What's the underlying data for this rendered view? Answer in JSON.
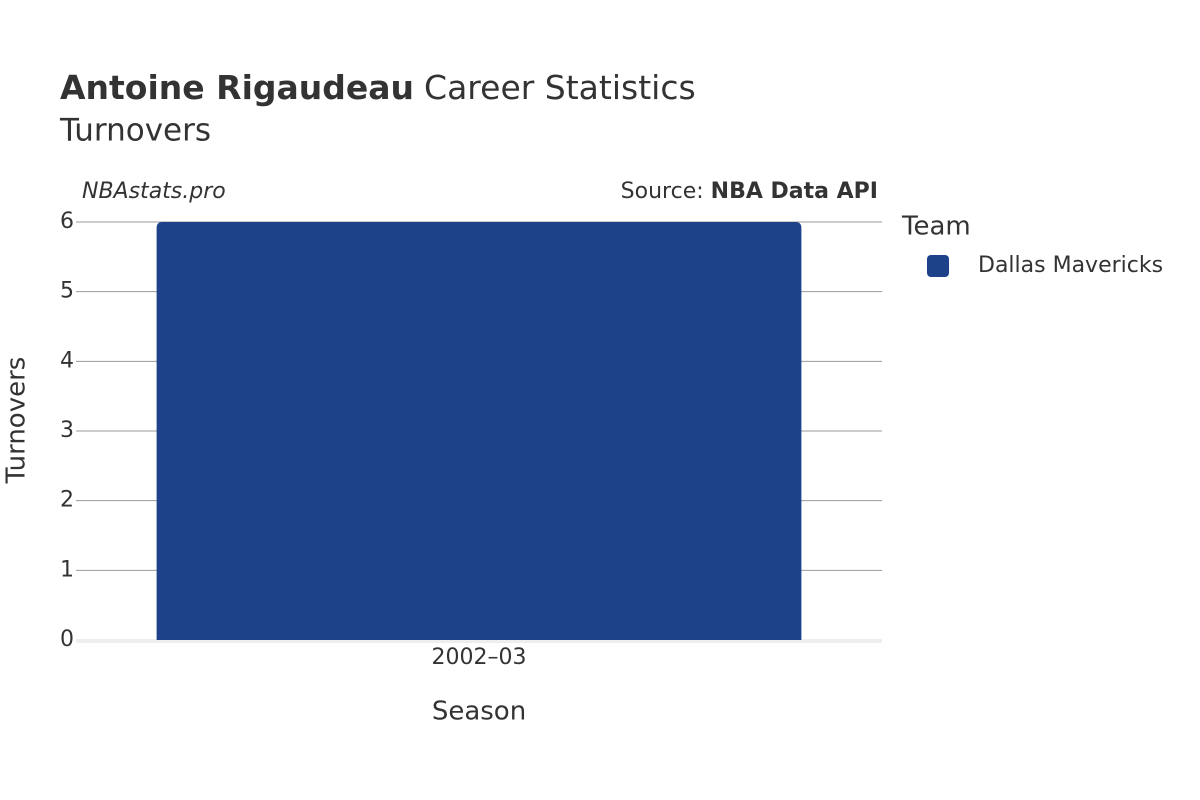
{
  "chart_data": {
    "type": "bar",
    "title": {
      "bold": "Antoine Rigaudeau",
      "rest": "Career Statistics"
    },
    "subtitle": "Turnovers",
    "watermark": "NBAstats.pro",
    "source": {
      "prefix": "Source:",
      "name": "NBA Data API"
    },
    "x_label": "Season",
    "y_label": "Turnovers",
    "legend_title": "Team",
    "categories": [
      "2002–03"
    ],
    "series": [
      {
        "name": "Dallas Mavericks",
        "color": "#1d428a",
        "values": [
          6
        ]
      }
    ],
    "ylim": [
      0,
      6
    ],
    "yticks": [
      0,
      1,
      2,
      3,
      4,
      5,
      6
    ],
    "grid": true,
    "legend": "right"
  }
}
